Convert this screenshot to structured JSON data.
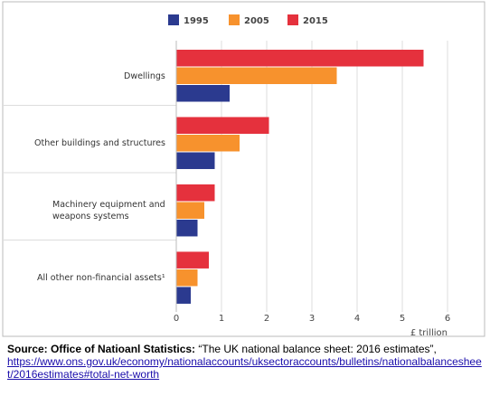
{
  "chart_data": {
    "type": "hbar",
    "categories": [
      "Dwellings",
      "Other buildings and structures",
      "Machinery equipment and\nweapons systems",
      "All other non-financial assets¹"
    ],
    "series": [
      {
        "name": "1995",
        "color": "#2b3a8f",
        "values": [
          1.18,
          0.85,
          0.47,
          0.32
        ]
      },
      {
        "name": "2005",
        "color": "#f7922d",
        "values": [
          3.55,
          1.4,
          0.62,
          0.47
        ]
      },
      {
        "name": "2015",
        "color": "#e5313d",
        "values": [
          5.47,
          2.05,
          0.85,
          0.72
        ]
      }
    ],
    "xlim": [
      0,
      6
    ],
    "xticks": [
      0,
      1,
      2,
      3,
      4,
      5,
      6
    ],
    "xlabel": "£ trillion",
    "grid": true,
    "legend": "top"
  },
  "source": {
    "label": "Source: Office of Natioanl Statistics:",
    "text": " “The UK national balance sheet: 2016 estimates”,",
    "url": "https://www.ons.gov.uk/economy/nationalaccounts/uksectoraccounts/bulletins/nationalbalancesheet/2016estimates#total-net-worth"
  }
}
